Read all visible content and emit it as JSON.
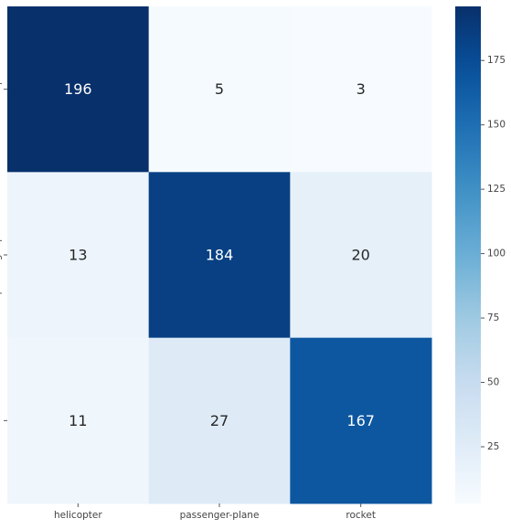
{
  "chart_data": {
    "type": "heatmap",
    "title": "",
    "xlabel": "",
    "ylabel": "",
    "x_categories": [
      "helicopter",
      "passenger-plane",
      "rocket"
    ],
    "y_categories": [
      "helicopter",
      "passenger-plane",
      "rocket"
    ],
    "values": [
      [
        196,
        5,
        3
      ],
      [
        13,
        184,
        20
      ],
      [
        11,
        27,
        167
      ]
    ],
    "colorscale": "Blues",
    "vmin": 3,
    "vmax": 196,
    "colorbar_ticks": [
      25,
      50,
      75,
      100,
      125,
      150,
      175
    ],
    "annotations": true
  }
}
